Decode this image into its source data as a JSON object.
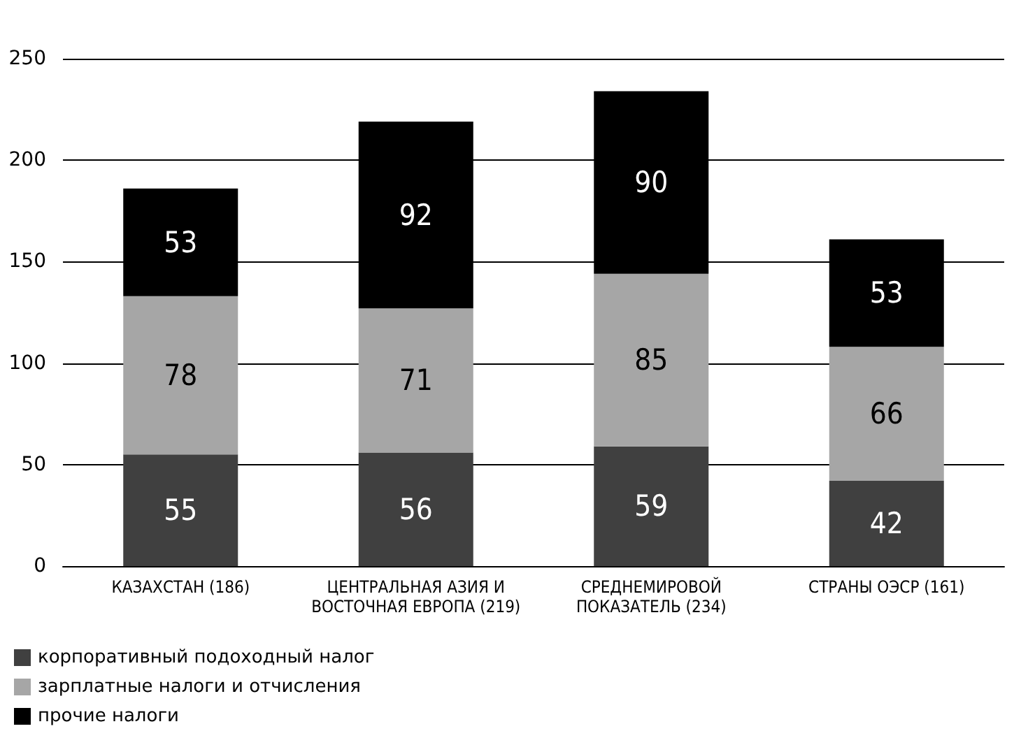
{
  "chart_data": {
    "type": "bar",
    "stacked": true,
    "data_labels": true,
    "grid": "y",
    "legend": "bottom left",
    "categories": [
      "КАЗАХСТАН (186)",
      "ЦЕНТРАЛЬНАЯ АЗИЯ И\nВОСТОЧНАЯ ЕВРОПА (219)",
      "СРЕДНЕМИРОВОЙ\nПОКАЗАТЕЛЬ (234)",
      "СТРАНЫ ОЭСР (161)"
    ],
    "series": [
      {
        "name": "корпоративный подоходный налог",
        "color": "#404040",
        "values": [
          55,
          56,
          59,
          42
        ]
      },
      {
        "name": "зарплатные налоги и отчисления",
        "color": "#a6a6a6",
        "values": [
          78,
          71,
          85,
          66
        ]
      },
      {
        "name": "прочие налоги",
        "color": "#000000",
        "values": [
          53,
          92,
          90,
          53
        ]
      }
    ],
    "ylim": [
      0,
      250
    ],
    "yticks": [
      0,
      50,
      100,
      150,
      200,
      250
    ]
  }
}
